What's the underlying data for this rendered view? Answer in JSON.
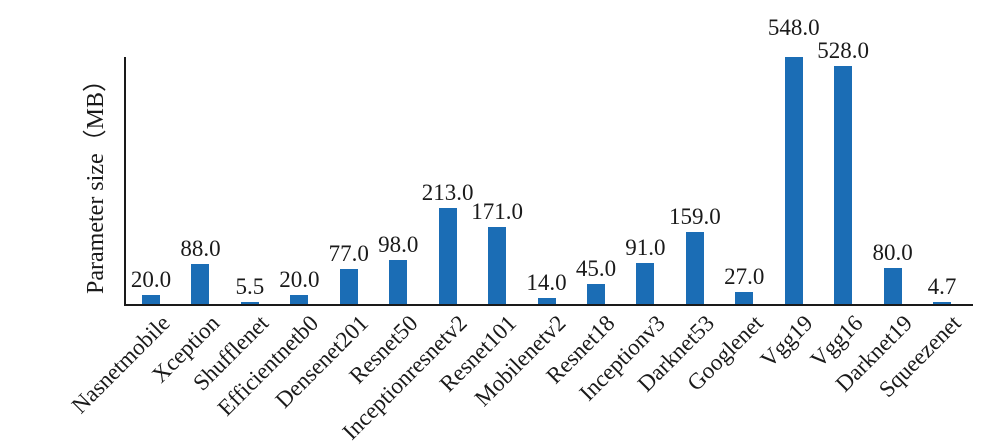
{
  "chart_data": {
    "type": "bar",
    "title": "",
    "xlabel": "",
    "ylabel": "Parameter size（MB）",
    "categories": [
      "Nasnetmobile",
      "Xception",
      "Shufflenet",
      "Efficientnetb0",
      "Densenet201",
      "Resnet50",
      "Inceptionresnetv2",
      "Resnet101",
      "Mobilenetv2",
      "Resnet18",
      "Inceptionv3",
      "Darknet53",
      "Googlenet",
      "Vgg19",
      "Vgg16",
      "Darknet19",
      "Squeezenet"
    ],
    "values": [
      20.0,
      88.0,
      5.5,
      20.0,
      77.0,
      98.0,
      213.0,
      171.0,
      14.0,
      45.0,
      91.0,
      159.0,
      27.0,
      548.0,
      528.0,
      80.0,
      4.7
    ],
    "value_labels": [
      "20.0",
      "88.0",
      "5.5",
      "20.0",
      "77.0",
      "98.0",
      "213.0",
      "171.0",
      "14.0",
      "45.0",
      "91.0",
      "159.0",
      "27.0",
      "548.0",
      "528.0",
      "80.0",
      "4.7"
    ],
    "ylim": [
      0,
      548
    ],
    "grid": false,
    "legend": null,
    "bar_color": "#1B6DB5",
    "axis_color": "#1a1a1a",
    "text_color": "#1a1a1a"
  }
}
